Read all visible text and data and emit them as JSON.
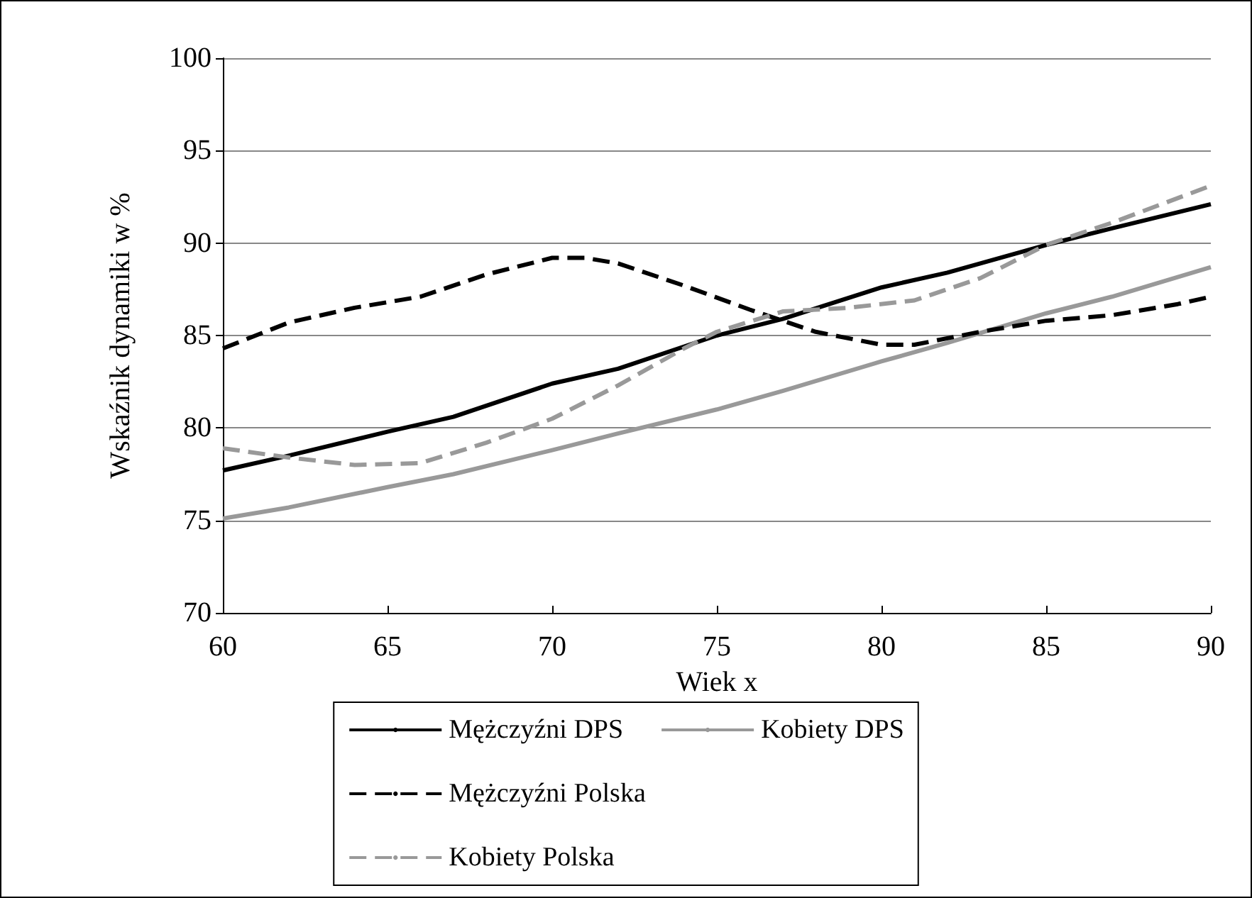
{
  "chart_data": {
    "type": "line",
    "xlabel": "Wiek x",
    "ylabel": "Wskaźnik dynamiki w %",
    "xlim": [
      60,
      90
    ],
    "xticks": [
      60,
      65,
      70,
      75,
      80,
      85,
      90
    ],
    "ylim": [
      70,
      100
    ],
    "yticks": [
      70,
      75,
      80,
      85,
      90,
      95,
      100
    ],
    "grid": "y",
    "legend": "bottom",
    "marker": "none",
    "series": [
      {
        "name": "Mężczyźni DPS",
        "color": "#000000",
        "line_style": "solid",
        "x": [
          60,
          62,
          65,
          67,
          70,
          72,
          75,
          77,
          80,
          82,
          85,
          87,
          90
        ],
        "values": [
          77.7,
          78.5,
          79.8,
          80.6,
          82.4,
          83.2,
          85.0,
          85.9,
          87.6,
          88.4,
          89.9,
          90.8,
          92.1
        ]
      },
      {
        "name": "Kobiety DPS",
        "color": "#999999",
        "line_style": "solid",
        "x": [
          60,
          62,
          65,
          67,
          70,
          72,
          75,
          77,
          80,
          82,
          85,
          87,
          90
        ],
        "values": [
          75.1,
          75.7,
          76.8,
          77.5,
          78.8,
          79.7,
          81.0,
          82.0,
          83.6,
          84.6,
          86.2,
          87.1,
          88.7
        ]
      },
      {
        "name": "Mężczyźni Polska",
        "color": "#000000",
        "line_style": "dashed",
        "x": [
          60,
          62,
          64,
          66,
          68,
          70,
          71,
          72,
          74,
          76,
          78,
          80,
          81,
          83,
          85,
          87,
          89,
          90
        ],
        "values": [
          84.3,
          85.7,
          86.5,
          87.1,
          88.3,
          89.2,
          89.2,
          88.9,
          87.7,
          86.4,
          85.2,
          84.5,
          84.5,
          85.2,
          85.8,
          86.1,
          86.7,
          87.1
        ]
      },
      {
        "name": "Kobiety Polska",
        "color": "#999999",
        "line_style": "dashed",
        "x": [
          60,
          62,
          64,
          66,
          68,
          70,
          72,
          74,
          75,
          77,
          79,
          81,
          83,
          85,
          87,
          90
        ],
        "values": [
          78.9,
          78.4,
          78.0,
          78.1,
          79.2,
          80.5,
          82.3,
          84.3,
          85.2,
          86.3,
          86.5,
          86.9,
          88.1,
          89.9,
          91.1,
          93.1
        ]
      }
    ]
  }
}
